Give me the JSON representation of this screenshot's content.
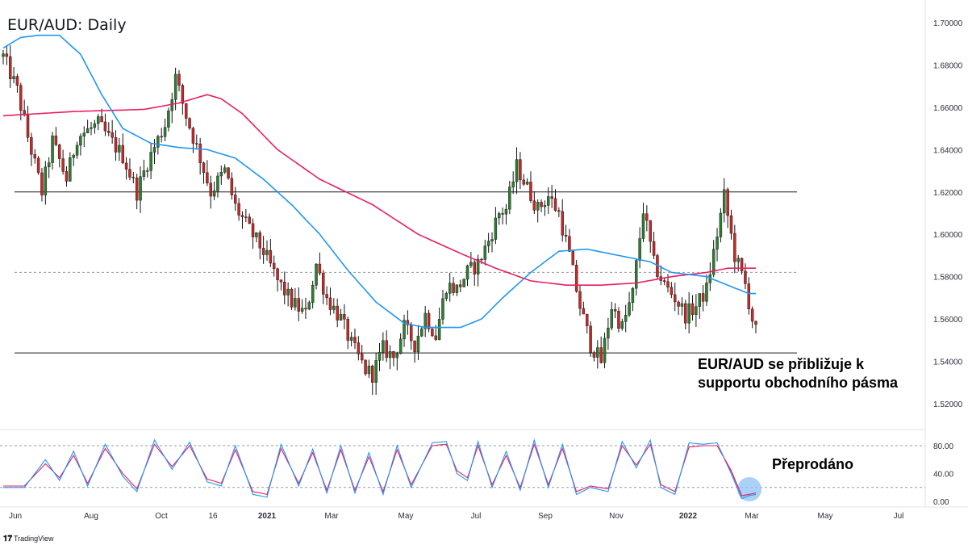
{
  "title": "EUR/AUD: Daily",
  "brand": "TradingView",
  "chart_data": {
    "type": "candlestick",
    "title": "EUR/AUD: Daily",
    "price_axis": {
      "ticks": [
        "1.70000",
        "1.68000",
        "1.66000",
        "1.64000",
        "1.62000",
        "1.60000",
        "1.58000",
        "1.56000",
        "1.54000",
        "1.52000"
      ],
      "ylim": [
        1.515,
        1.705
      ]
    },
    "oscillator_axis": {
      "ticks": [
        "80.00",
        "40.00",
        "0.00"
      ],
      "ylim": [
        0,
        100
      ],
      "levels": [
        80,
        20
      ]
    },
    "x_ticks": [
      {
        "label": "Jun",
        "bold": false
      },
      {
        "label": "Aug",
        "bold": false
      },
      {
        "label": "Oct",
        "bold": false
      },
      {
        "label": "16",
        "bold": false
      },
      {
        "label": "2021",
        "bold": true
      },
      {
        "label": "Mar",
        "bold": false
      },
      {
        "label": "May",
        "bold": false
      },
      {
        "label": "Jul",
        "bold": false
      },
      {
        "label": "Sep",
        "bold": false
      },
      {
        "label": "Nov",
        "bold": false
      },
      {
        "label": "2022",
        "bold": true
      },
      {
        "label": "Mar",
        "bold": false
      },
      {
        "label": "May",
        "bold": false
      },
      {
        "label": "Jul",
        "bold": false
      }
    ],
    "close_path": [
      [
        0,
        1.684
      ],
      [
        4,
        1.668
      ],
      [
        7,
        1.646
      ],
      [
        11,
        1.62
      ],
      [
        14,
        1.644
      ],
      [
        18,
        1.626
      ],
      [
        21,
        1.646
      ],
      [
        27,
        1.652
      ],
      [
        34,
        1.637
      ],
      [
        38,
        1.62
      ],
      [
        41,
        1.634
      ],
      [
        46,
        1.652
      ],
      [
        49,
        1.674
      ],
      [
        52,
        1.656
      ],
      [
        56,
        1.636
      ],
      [
        59,
        1.62
      ],
      [
        63,
        1.63
      ],
      [
        66,
        1.613
      ],
      [
        70,
        1.602
      ],
      [
        74,
        1.592
      ],
      [
        78,
        1.578
      ],
      [
        82,
        1.568
      ],
      [
        86,
        1.562
      ],
      [
        89,
        1.586
      ],
      [
        92,
        1.57
      ],
      [
        96,
        1.56
      ],
      [
        99,
        1.548
      ],
      [
        103,
        1.536
      ],
      [
        105,
        1.534
      ],
      [
        108,
        1.546
      ],
      [
        111,
        1.542
      ],
      [
        114,
        1.556
      ],
      [
        117,
        1.548
      ],
      [
        120,
        1.562
      ],
      [
        123,
        1.552
      ],
      [
        126,
        1.576
      ],
      [
        129,
        1.574
      ],
      [
        132,
        1.582
      ],
      [
        135,
        1.586
      ],
      [
        138,
        1.597
      ],
      [
        141,
        1.61
      ],
      [
        143,
        1.612
      ],
      [
        146,
        1.632
      ],
      [
        149,
        1.622
      ],
      [
        152,
        1.612
      ],
      [
        155,
        1.618
      ],
      [
        158,
        1.61
      ],
      [
        161,
        1.59
      ],
      [
        164,
        1.566
      ],
      [
        167,
        1.548
      ],
      [
        170,
        1.54
      ],
      [
        173,
        1.566
      ],
      [
        176,
        1.556
      ],
      [
        179,
        1.572
      ],
      [
        182,
        1.612
      ],
      [
        185,
        1.586
      ],
      [
        188,
        1.576
      ],
      [
        191,
        1.57
      ],
      [
        194,
        1.562
      ],
      [
        197,
        1.566
      ],
      [
        200,
        1.574
      ],
      [
        203,
        1.6
      ],
      [
        205,
        1.618
      ],
      [
        208,
        1.59
      ],
      [
        211,
        1.576
      ],
      [
        213,
        1.56
      ],
      [
        214,
        1.554
      ]
    ],
    "series": [
      {
        "name": "",
        "color": "#e91e63",
        "values": [
          [
            0,
            1.656
          ],
          [
            20,
            1.658
          ],
          [
            40,
            1.659
          ],
          [
            50,
            1.662
          ],
          [
            58,
            1.666
          ],
          [
            62,
            1.664
          ],
          [
            68,
            1.657
          ],
          [
            78,
            1.64
          ],
          [
            90,
            1.626
          ],
          [
            105,
            1.614
          ],
          [
            118,
            1.6
          ],
          [
            130,
            1.591
          ],
          [
            140,
            1.584
          ],
          [
            150,
            1.578
          ],
          [
            160,
            1.576
          ],
          [
            170,
            1.576
          ],
          [
            180,
            1.577
          ],
          [
            190,
            1.58
          ],
          [
            200,
            1.582
          ],
          [
            206,
            1.584
          ],
          [
            212,
            1.584
          ],
          [
            214,
            1.584
          ]
        ]
      },
      {
        "name": "",
        "color": "#2196f3",
        "values": [
          [
            0,
            1.688
          ],
          [
            5,
            1.693
          ],
          [
            10,
            1.694
          ],
          [
            16,
            1.694
          ],
          [
            22,
            1.685
          ],
          [
            28,
            1.666
          ],
          [
            34,
            1.65
          ],
          [
            42,
            1.643
          ],
          [
            50,
            1.641
          ],
          [
            58,
            1.64
          ],
          [
            66,
            1.636
          ],
          [
            74,
            1.626
          ],
          [
            82,
            1.614
          ],
          [
            90,
            1.6
          ],
          [
            98,
            1.583
          ],
          [
            106,
            1.568
          ],
          [
            114,
            1.558
          ],
          [
            120,
            1.556
          ],
          [
            130,
            1.556
          ],
          [
            136,
            1.56
          ],
          [
            142,
            1.57
          ],
          [
            150,
            1.582
          ],
          [
            158,
            1.592
          ],
          [
            166,
            1.593
          ],
          [
            172,
            1.591
          ],
          [
            178,
            1.589
          ],
          [
            184,
            1.587
          ],
          [
            190,
            1.582
          ],
          [
            200,
            1.58
          ],
          [
            206,
            1.576
          ],
          [
            212,
            1.572
          ],
          [
            214,
            1.572
          ]
        ]
      }
    ],
    "horizontal_lines": [
      {
        "price": 1.62,
        "style": "solid"
      },
      {
        "price": 1.544,
        "style": "solid"
      },
      {
        "price": 1.582,
        "style": "dashed"
      }
    ],
    "oscillator_k_path": [
      [
        0,
        20
      ],
      [
        6,
        20
      ],
      [
        12,
        60
      ],
      [
        16,
        30
      ],
      [
        20,
        72
      ],
      [
        24,
        22
      ],
      [
        29,
        82
      ],
      [
        34,
        36
      ],
      [
        38,
        14
      ],
      [
        43,
        88
      ],
      [
        48,
        46
      ],
      [
        53,
        85
      ],
      [
        58,
        28
      ],
      [
        62,
        22
      ],
      [
        66,
        80
      ],
      [
        71,
        10
      ],
      [
        75,
        6
      ],
      [
        79,
        82
      ],
      [
        84,
        22
      ],
      [
        88,
        75
      ],
      [
        92,
        12
      ],
      [
        96,
        80
      ],
      [
        100,
        12
      ],
      [
        104,
        70
      ],
      [
        108,
        10
      ],
      [
        112,
        80
      ],
      [
        116,
        20
      ],
      [
        122,
        84
      ],
      [
        126,
        86
      ],
      [
        129,
        40
      ],
      [
        132,
        30
      ],
      [
        135,
        86
      ],
      [
        139,
        20
      ],
      [
        143,
        72
      ],
      [
        147,
        16
      ],
      [
        151,
        88
      ],
      [
        155,
        20
      ],
      [
        159,
        82
      ],
      [
        163,
        10
      ],
      [
        167,
        20
      ],
      [
        172,
        14
      ],
      [
        176,
        86
      ],
      [
        180,
        48
      ],
      [
        184,
        88
      ],
      [
        187,
        20
      ],
      [
        191,
        10
      ],
      [
        195,
        84
      ],
      [
        199,
        82
      ],
      [
        203,
        84
      ],
      [
        207,
        40
      ],
      [
        210,
        4
      ],
      [
        212,
        8
      ],
      [
        214,
        10
      ]
    ],
    "oscillator_d_path": [
      [
        0,
        22
      ],
      [
        6,
        22
      ],
      [
        12,
        54
      ],
      [
        16,
        34
      ],
      [
        20,
        66
      ],
      [
        24,
        26
      ],
      [
        29,
        76
      ],
      [
        34,
        40
      ],
      [
        38,
        18
      ],
      [
        43,
        82
      ],
      [
        48,
        50
      ],
      [
        53,
        80
      ],
      [
        58,
        32
      ],
      [
        62,
        26
      ],
      [
        66,
        74
      ],
      [
        71,
        14
      ],
      [
        75,
        10
      ],
      [
        79,
        76
      ],
      [
        84,
        26
      ],
      [
        88,
        70
      ],
      [
        92,
        16
      ],
      [
        96,
        74
      ],
      [
        100,
        16
      ],
      [
        104,
        64
      ],
      [
        108,
        14
      ],
      [
        112,
        74
      ],
      [
        116,
        24
      ],
      [
        122,
        80
      ],
      [
        126,
        82
      ],
      [
        129,
        44
      ],
      [
        132,
        34
      ],
      [
        135,
        80
      ],
      [
        139,
        24
      ],
      [
        143,
        66
      ],
      [
        147,
        20
      ],
      [
        151,
        82
      ],
      [
        155,
        24
      ],
      [
        159,
        76
      ],
      [
        163,
        14
      ],
      [
        167,
        22
      ],
      [
        172,
        18
      ],
      [
        176,
        80
      ],
      [
        180,
        52
      ],
      [
        184,
        82
      ],
      [
        187,
        24
      ],
      [
        191,
        14
      ],
      [
        195,
        78
      ],
      [
        199,
        80
      ],
      [
        203,
        80
      ],
      [
        207,
        44
      ],
      [
        210,
        8
      ],
      [
        212,
        10
      ],
      [
        214,
        12
      ]
    ],
    "annotations": [
      {
        "line1": "EUR/AUD se přibližuje k",
        "line2": "supportu obchodního pásma"
      },
      {
        "line1": "Přeprodáno"
      }
    ],
    "highlight_color": "#90c2f5"
  }
}
